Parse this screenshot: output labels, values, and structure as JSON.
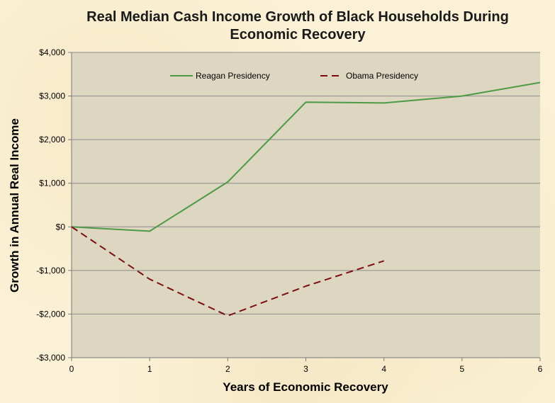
{
  "chart_data": {
    "type": "line",
    "title_line1": "Real Median Cash Income Growth of Black Households During",
    "title_line2": "Economic Recovery",
    "xlabel": "Years of Economic Recovery",
    "ylabel": "Growth in Annual Real Income",
    "xlim": [
      0,
      6
    ],
    "ylim": [
      -3000,
      4000
    ],
    "x_ticks": [
      {
        "value": 0,
        "label": "0"
      },
      {
        "value": 1,
        "label": "1"
      },
      {
        "value": 2,
        "label": "2"
      },
      {
        "value": 3,
        "label": "3"
      },
      {
        "value": 4,
        "label": "4"
      },
      {
        "value": 5,
        "label": "5"
      },
      {
        "value": 6,
        "label": "6"
      }
    ],
    "y_ticks": [
      {
        "value": 4000,
        "label": "$4,000"
      },
      {
        "value": 3000,
        "label": "$3,000"
      },
      {
        "value": 2000,
        "label": "$2,000"
      },
      {
        "value": 1000,
        "label": "$1,000"
      },
      {
        "value": 0,
        "label": "$0"
      },
      {
        "value": -1000,
        "label": "-$1,000"
      },
      {
        "value": -2000,
        "label": "-$2,000"
      },
      {
        "value": -3000,
        "label": "-$3,000"
      }
    ],
    "grid": true,
    "legend_position": "top",
    "plot_background": "#ddd6c1",
    "series": [
      {
        "name": "Reagan Presidency",
        "color": "#4e9a46",
        "style": "solid",
        "points": [
          [
            0,
            0
          ],
          [
            1,
            -100
          ],
          [
            2,
            1030
          ],
          [
            3,
            2860
          ],
          [
            4,
            2840
          ],
          [
            5,
            3000
          ],
          [
            6,
            3310
          ]
        ]
      },
      {
        "name": "Obama Presidency",
        "color": "#7b1010",
        "style": "dashed",
        "points": [
          [
            0,
            0
          ],
          [
            1,
            -1200
          ],
          [
            2,
            -2040
          ],
          [
            3,
            -1360
          ],
          [
            4,
            -780
          ]
        ]
      }
    ]
  }
}
